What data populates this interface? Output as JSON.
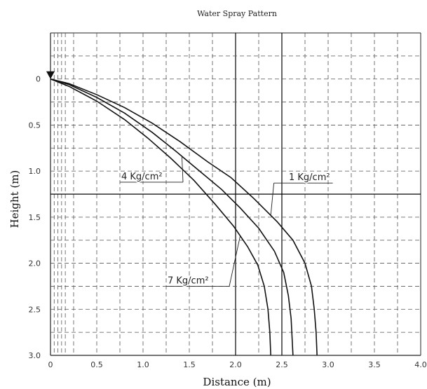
{
  "chart_data": {
    "type": "line",
    "title": "Water Spray Pattern",
    "xlabel": "Distance (m)",
    "ylabel": "Height (m)",
    "xlim": [
      0,
      4.0
    ],
    "ylim": [
      -0.5,
      3.0
    ],
    "y_inverted": true,
    "grid": true,
    "xticks": [
      "0",
      "0.5",
      "1.0",
      "1.5",
      "2.0",
      "2.5",
      "3.0",
      "3.5",
      "4.0"
    ],
    "yticks": [
      "0",
      "0.5",
      "1.0",
      "1.5",
      "2.0",
      "2.5",
      "3.0"
    ],
    "colors": {
      "curve": "#111111",
      "grid": "#555555",
      "emphasis": "#000000"
    },
    "nozzle_marker": "triangle-down-icon",
    "series": [
      {
        "name": "1 Kg/cm²",
        "points": [
          [
            0,
            0
          ],
          [
            0.2,
            0.05
          ],
          [
            0.5,
            0.17
          ],
          [
            0.8,
            0.31
          ],
          [
            1.1,
            0.48
          ],
          [
            1.4,
            0.68
          ],
          [
            1.7,
            0.9
          ],
          [
            1.95,
            1.07
          ],
          [
            2.2,
            1.3
          ],
          [
            2.45,
            1.55
          ],
          [
            2.62,
            1.75
          ],
          [
            2.75,
            2.0
          ],
          [
            2.82,
            2.25
          ],
          [
            2.85,
            2.5
          ],
          [
            2.87,
            2.75
          ],
          [
            2.88,
            3.0
          ]
        ]
      },
      {
        "name": "4 Kg/cm²",
        "points": [
          [
            0,
            0
          ],
          [
            0.2,
            0.06
          ],
          [
            0.5,
            0.2
          ],
          [
            0.8,
            0.37
          ],
          [
            1.1,
            0.58
          ],
          [
            1.35,
            0.78
          ],
          [
            1.6,
            0.99
          ],
          [
            1.85,
            1.2
          ],
          [
            2.05,
            1.4
          ],
          [
            2.25,
            1.62
          ],
          [
            2.42,
            1.87
          ],
          [
            2.52,
            2.1
          ],
          [
            2.57,
            2.35
          ],
          [
            2.6,
            2.6
          ],
          [
            2.61,
            2.8
          ],
          [
            2.62,
            3.0
          ]
        ]
      },
      {
        "name": "7 Kg/cm²",
        "points": [
          [
            0,
            0
          ],
          [
            0.2,
            0.08
          ],
          [
            0.5,
            0.24
          ],
          [
            0.8,
            0.44
          ],
          [
            1.05,
            0.64
          ],
          [
            1.3,
            0.86
          ],
          [
            1.55,
            1.1
          ],
          [
            1.78,
            1.36
          ],
          [
            1.98,
            1.6
          ],
          [
            2.13,
            1.82
          ],
          [
            2.24,
            2.02
          ],
          [
            2.31,
            2.25
          ],
          [
            2.35,
            2.5
          ],
          [
            2.37,
            2.75
          ],
          [
            2.38,
            3.0
          ]
        ]
      }
    ],
    "annotations": [
      {
        "text": "1 Kg/cm²",
        "series": "1 Kg/cm²"
      },
      {
        "text": "4 Kg/cm²",
        "series": "4 Kg/cm²"
      },
      {
        "text": "7 Kg/cm²",
        "series": "7 Kg/cm²"
      }
    ]
  }
}
